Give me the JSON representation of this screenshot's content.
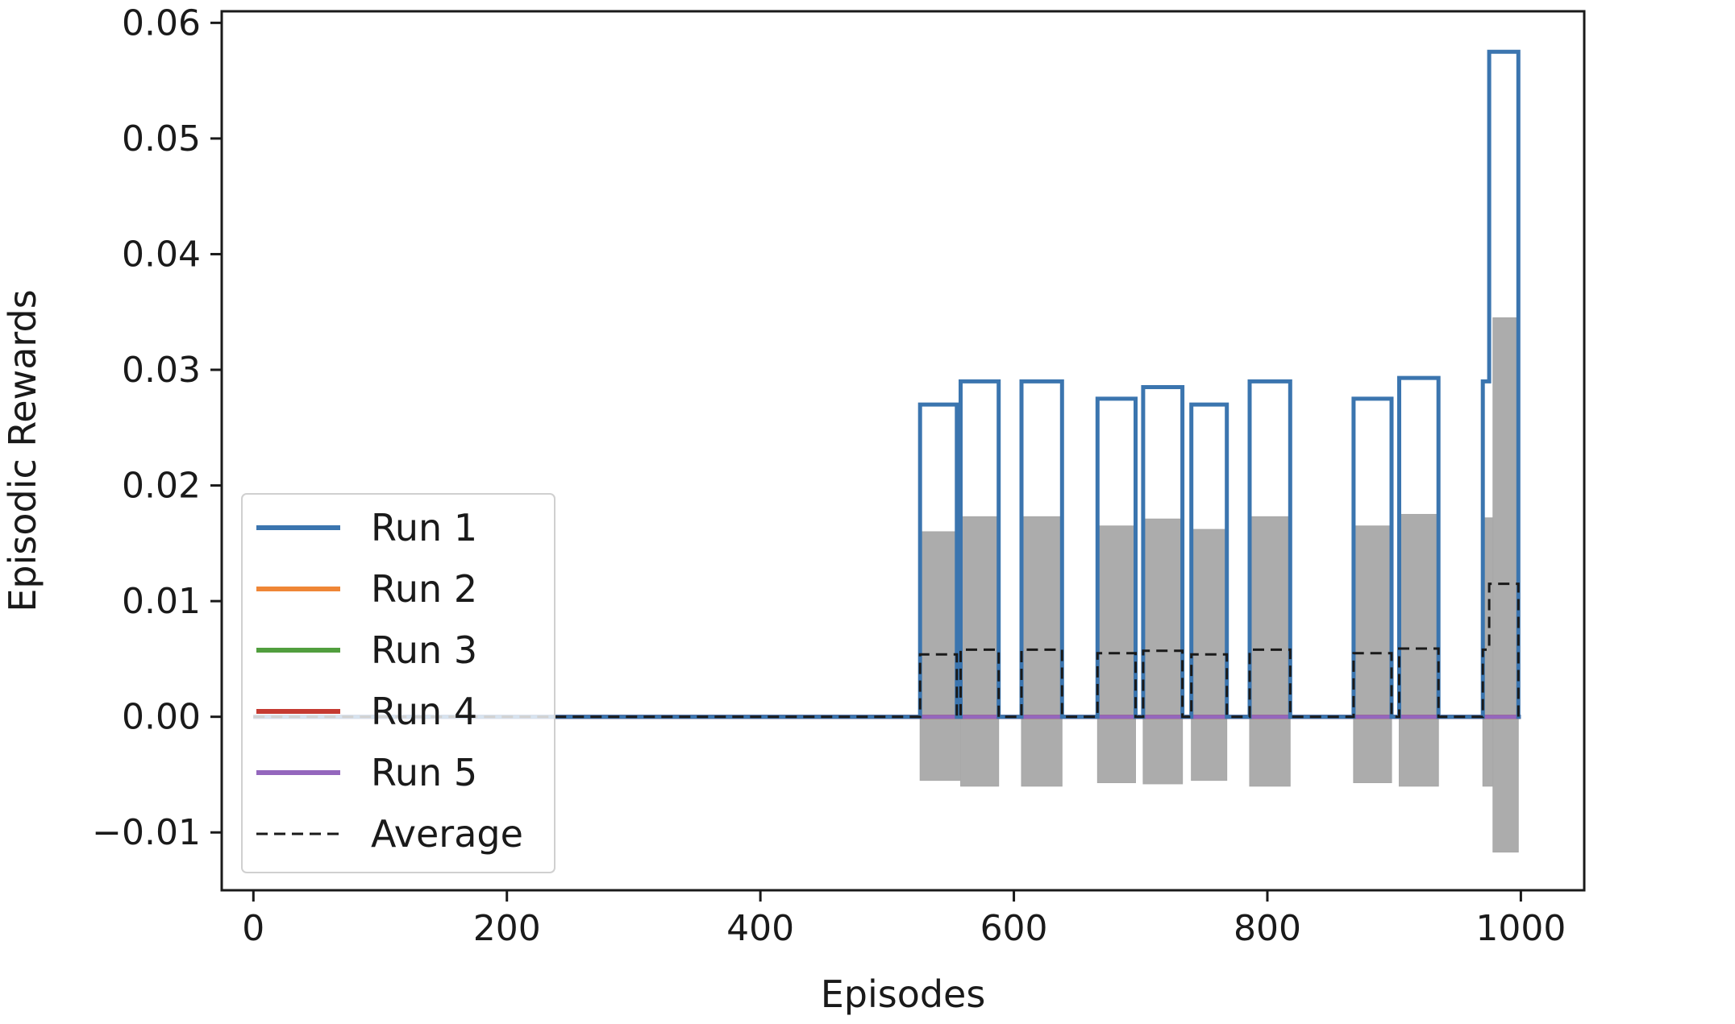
{
  "chart_data": {
    "type": "line",
    "title": "",
    "xlabel": "Episodes",
    "ylabel": "Episodic Rewards",
    "xlim": [
      -25,
      1050
    ],
    "ylim": [
      -0.015,
      0.061
    ],
    "xticks": [
      0,
      200,
      400,
      600,
      800,
      1000
    ],
    "xtick_labels": [
      "0",
      "200",
      "400",
      "600",
      "800",
      "1000"
    ],
    "yticks": [
      -0.01,
      0.0,
      0.01,
      0.02,
      0.03,
      0.04,
      0.05,
      0.06
    ],
    "ytick_labels": [
      "−0.01",
      "0.00",
      "0.01",
      "0.02",
      "0.03",
      "0.04",
      "0.05",
      "0.06"
    ],
    "grid": false,
    "legend_position": "lower-left",
    "series": [
      {
        "name": "Run 1",
        "color": "#3b75af",
        "style": "solid",
        "x": [
          0,
          526,
          526,
          555,
          555,
          558,
          558,
          588,
          588,
          606,
          606,
          638,
          638,
          666,
          666,
          696,
          696,
          702,
          702,
          733,
          733,
          740,
          740,
          768,
          768,
          786,
          786,
          818,
          818,
          868,
          868,
          898,
          898,
          904,
          904,
          935,
          935,
          970,
          970,
          975,
          975,
          978,
          978,
          998,
          998,
          1000
        ],
        "y": [
          0.0,
          0.0,
          0.027,
          0.027,
          0.0,
          0.0,
          0.029,
          0.029,
          0.0,
          0.0,
          0.029,
          0.029,
          0.0,
          0.0,
          0.0275,
          0.0275,
          0.0,
          0.0,
          0.0285,
          0.0285,
          0.0,
          0.0,
          0.027,
          0.027,
          0.0,
          0.0,
          0.029,
          0.029,
          0.0,
          0.0,
          0.0275,
          0.0275,
          0.0,
          0.0,
          0.0293,
          0.0293,
          0.0,
          0.0,
          0.029,
          0.029,
          0.0575,
          0.0575,
          0.0575,
          0.0575,
          0.0,
          0.0
        ]
      },
      {
        "name": "Run 2",
        "color": "#ef8636",
        "style": "solid",
        "x": [
          0,
          1000
        ],
        "y": [
          0.0,
          0.0
        ]
      },
      {
        "name": "Run 3",
        "color": "#519e3e",
        "style": "solid",
        "x": [
          0,
          1000
        ],
        "y": [
          0.0,
          0.0
        ]
      },
      {
        "name": "Run 4",
        "color": "#c53a32",
        "style": "solid",
        "x": [
          0,
          1000
        ],
        "y": [
          0.0,
          0.0
        ]
      },
      {
        "name": "Run 5",
        "color": "#9467bd",
        "style": "solid",
        "x": [
          0,
          1000
        ],
        "y": [
          0.0,
          0.0
        ]
      },
      {
        "name": "Average",
        "color": "#1a1a1a",
        "style": "dashed",
        "x": [
          0,
          526,
          526,
          555,
          555,
          558,
          558,
          588,
          588,
          606,
          606,
          638,
          638,
          666,
          666,
          696,
          696,
          702,
          702,
          733,
          733,
          740,
          740,
          768,
          768,
          786,
          786,
          818,
          818,
          868,
          868,
          898,
          898,
          904,
          904,
          935,
          935,
          970,
          970,
          975,
          975,
          978,
          978,
          998,
          998,
          1000
        ],
        "y": [
          0.0,
          0.0,
          0.0054,
          0.0054,
          0.0,
          0.0,
          0.0058,
          0.0058,
          0.0,
          0.0,
          0.0058,
          0.0058,
          0.0,
          0.0,
          0.0055,
          0.0055,
          0.0,
          0.0,
          0.0057,
          0.0057,
          0.0,
          0.0,
          0.0054,
          0.0054,
          0.0,
          0.0,
          0.0058,
          0.0058,
          0.0,
          0.0,
          0.0055,
          0.0055,
          0.0,
          0.0,
          0.0059,
          0.0059,
          0.0,
          0.0,
          0.0058,
          0.0058,
          0.0115,
          0.0115,
          0.0115,
          0.0115,
          0.0,
          0.0
        ]
      }
    ],
    "std_band": {
      "color": "#a8a8a8",
      "intervals": [
        {
          "x0": 526,
          "x1": 558,
          "lower": -0.0055,
          "upper": 0.016
        },
        {
          "x0": 558,
          "x1": 588,
          "lower": -0.006,
          "upper": 0.0173
        },
        {
          "x0": 606,
          "x1": 638,
          "lower": -0.006,
          "upper": 0.0173
        },
        {
          "x0": 666,
          "x1": 696,
          "lower": -0.0057,
          "upper": 0.0165
        },
        {
          "x0": 702,
          "x1": 733,
          "lower": -0.0058,
          "upper": 0.0171
        },
        {
          "x0": 740,
          "x1": 768,
          "lower": -0.0055,
          "upper": 0.0162
        },
        {
          "x0": 786,
          "x1": 818,
          "lower": -0.006,
          "upper": 0.0173
        },
        {
          "x0": 868,
          "x1": 898,
          "lower": -0.0057,
          "upper": 0.0165
        },
        {
          "x0": 904,
          "x1": 935,
          "lower": -0.006,
          "upper": 0.0175
        },
        {
          "x0": 970,
          "x1": 978,
          "lower": -0.006,
          "upper": 0.0172
        },
        {
          "x0": 978,
          "x1": 998,
          "lower": -0.0117,
          "upper": 0.0345
        }
      ]
    }
  }
}
